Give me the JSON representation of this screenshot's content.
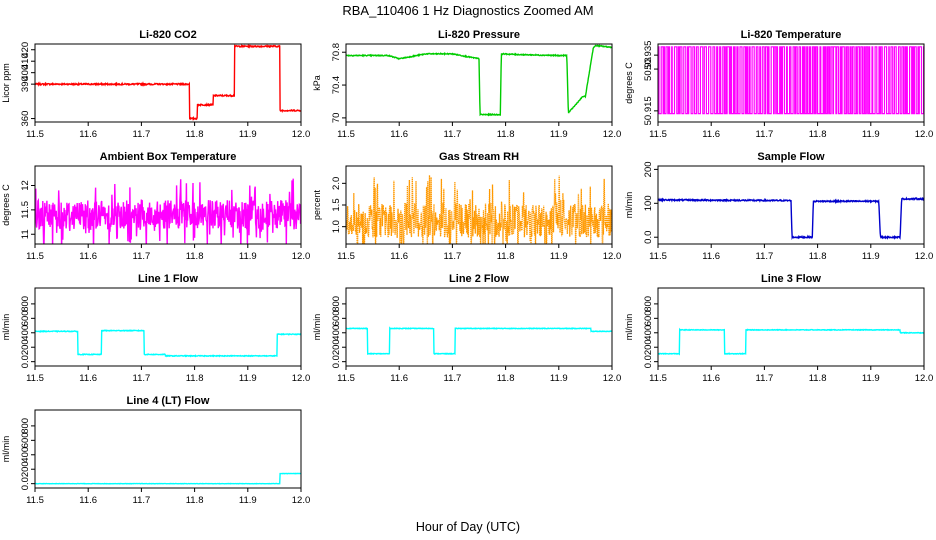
{
  "page": {
    "title": "RBA_110406  1 Hz Diagnostics Zoomed AM",
    "xlabel": "Hour of Day (UTC)"
  },
  "chart_data": [
    {
      "type": "line",
      "title": "Li-820 CO2",
      "ylabel": "Licor ppm",
      "color": "#ff0000",
      "xlim": [
        11.5,
        12.0
      ],
      "ylim": [
        357,
        425
      ],
      "yticks": [
        360,
        390,
        400,
        410,
        420
      ],
      "xticks": [
        11.5,
        11.6,
        11.7,
        11.8,
        11.9,
        12.0
      ],
      "noise": 0.6,
      "x": [
        11.5,
        11.79,
        11.79,
        11.805,
        11.805,
        11.835,
        11.835,
        11.875,
        11.875,
        11.96,
        11.96,
        12.0
      ],
      "y": [
        390,
        390,
        360,
        360,
        372,
        372,
        380,
        380,
        423,
        423,
        367,
        367
      ]
    },
    {
      "type": "line",
      "title": "Li-820 Pressure",
      "ylabel": "kPa",
      "color": "#00cc00",
      "xlim": [
        11.5,
        12.0
      ],
      "ylim": [
        69.95,
        70.9
      ],
      "yticks": [
        70.0,
        70.4,
        70.8
      ],
      "xticks": [
        11.5,
        11.6,
        11.7,
        11.8,
        11.9,
        12.0
      ],
      "noise": 0.006,
      "x": [
        11.5,
        11.58,
        11.6,
        11.65,
        11.7,
        11.75,
        11.752,
        11.79,
        11.792,
        11.83,
        11.9,
        11.915,
        11.918,
        11.945,
        11.95,
        11.965,
        11.97,
        12.0
      ],
      "y": [
        70.76,
        70.76,
        70.72,
        70.78,
        70.78,
        70.72,
        70.04,
        70.04,
        70.78,
        70.77,
        70.76,
        70.76,
        70.06,
        70.26,
        70.26,
        70.86,
        70.88,
        70.86
      ]
    },
    {
      "type": "line",
      "title": "Li-820 Temperature",
      "ylabel": "degrees C",
      "color": "#ff00ff",
      "xlim": [
        11.5,
        12.0
      ],
      "ylim": [
        50.911,
        50.939
      ],
      "yticks": [
        50.915,
        50.93,
        50.935
      ],
      "xticks": [
        11.5,
        11.6,
        11.7,
        11.8,
        11.9,
        12.0
      ],
      "x": [
        11.5,
        12.0
      ],
      "y": [
        50.914,
        50.938
      ]
    },
    {
      "type": "line",
      "title": "Ambient Box Temperature",
      "ylabel": "degrees C",
      "color": "#ff00ff",
      "xlim": [
        11.5,
        12.0
      ],
      "ylim": [
        10.8,
        12.4
      ],
      "yticks": [
        11.0,
        11.5,
        12.0
      ],
      "xticks": [
        11.5,
        11.6,
        11.7,
        11.8,
        11.9,
        12.0
      ],
      "noise": 0.3,
      "x": [
        11.5,
        12.0
      ],
      "y": [
        11.4,
        11.4
      ]
    },
    {
      "type": "line",
      "title": "Gas Stream RH",
      "ylabel": "percent",
      "color": "#ff9900",
      "xlim": [
        11.5,
        12.0
      ],
      "ylim": [
        0.6,
        2.4
      ],
      "yticks": [
        1.0,
        1.5,
        2.0
      ],
      "xticks": [
        11.5,
        11.6,
        11.7,
        11.8,
        11.9,
        12.0
      ],
      "noise": 0.4,
      "x": [
        11.5,
        12.0
      ],
      "y": [
        1.15,
        1.15
      ]
    },
    {
      "type": "line",
      "title": "Sample Flow",
      "ylabel": "ml/min",
      "color": "#0000cc",
      "xlim": [
        11.5,
        12.0
      ],
      "ylim": [
        -20,
        210
      ],
      "yticks": [
        0,
        100,
        200
      ],
      "xticks": [
        11.5,
        11.6,
        11.7,
        11.8,
        11.9,
        12.0
      ],
      "noise": 2,
      "x": [
        11.5,
        11.75,
        11.752,
        11.79,
        11.792,
        11.915,
        11.918,
        11.955,
        11.958,
        12.0
      ],
      "y": [
        110,
        108,
        0,
        0,
        106,
        106,
        0,
        0,
        113,
        113
      ]
    },
    {
      "type": "line",
      "title": "Line 1 Flow",
      "ylabel": "ml/min",
      "color": "#00ffff",
      "xlim": [
        11.5,
        12.0
      ],
      "ylim": [
        -60,
        1020
      ],
      "yticks": [
        0,
        200,
        400,
        600,
        800
      ],
      "xticks": [
        11.5,
        11.6,
        11.7,
        11.8,
        11.9,
        12.0
      ],
      "noise": 5,
      "x": [
        11.5,
        11.58,
        11.58,
        11.625,
        11.625,
        11.705,
        11.705,
        11.745,
        11.745,
        11.955,
        11.955,
        12.0
      ],
      "y": [
        420,
        420,
        100,
        100,
        430,
        430,
        100,
        100,
        80,
        80,
        380,
        380
      ]
    },
    {
      "type": "line",
      "title": "Line 2 Flow",
      "ylabel": "ml/min",
      "color": "#00ffff",
      "xlim": [
        11.5,
        12.0
      ],
      "ylim": [
        -60,
        1020
      ],
      "yticks": [
        0,
        200,
        400,
        600,
        800
      ],
      "xticks": [
        11.5,
        11.6,
        11.7,
        11.8,
        11.9,
        12.0
      ],
      "noise": 4,
      "x": [
        11.5,
        11.54,
        11.54,
        11.582,
        11.582,
        11.665,
        11.665,
        11.705,
        11.705,
        11.96,
        11.96,
        12.0
      ],
      "y": [
        460,
        460,
        110,
        110,
        460,
        460,
        110,
        110,
        460,
        460,
        420,
        420
      ]
    },
    {
      "type": "line",
      "title": "Line 3 Flow",
      "ylabel": "ml/min",
      "color": "#00ffff",
      "xlim": [
        11.5,
        12.0
      ],
      "ylim": [
        -60,
        1020
      ],
      "yticks": [
        0,
        200,
        400,
        600,
        800
      ],
      "xticks": [
        11.5,
        11.6,
        11.7,
        11.8,
        11.9,
        12.0
      ],
      "noise": 4,
      "x": [
        11.5,
        11.54,
        11.54,
        11.625,
        11.625,
        11.665,
        11.665,
        11.955,
        11.955,
        12.0
      ],
      "y": [
        110,
        110,
        440,
        440,
        110,
        110,
        440,
        440,
        400,
        400
      ]
    },
    {
      "type": "line",
      "title": "Line 4 (LT) Flow",
      "ylabel": "ml/min",
      "color": "#00ffff",
      "xlim": [
        11.5,
        12.0
      ],
      "ylim": [
        -60,
        1020
      ],
      "yticks": [
        0,
        200,
        400,
        600,
        800
      ],
      "xticks": [
        11.5,
        11.6,
        11.7,
        11.8,
        11.9,
        12.0
      ],
      "noise": 2,
      "x": [
        11.5,
        11.96,
        11.96,
        12.0
      ],
      "y": [
        0,
        0,
        140,
        140
      ]
    }
  ]
}
